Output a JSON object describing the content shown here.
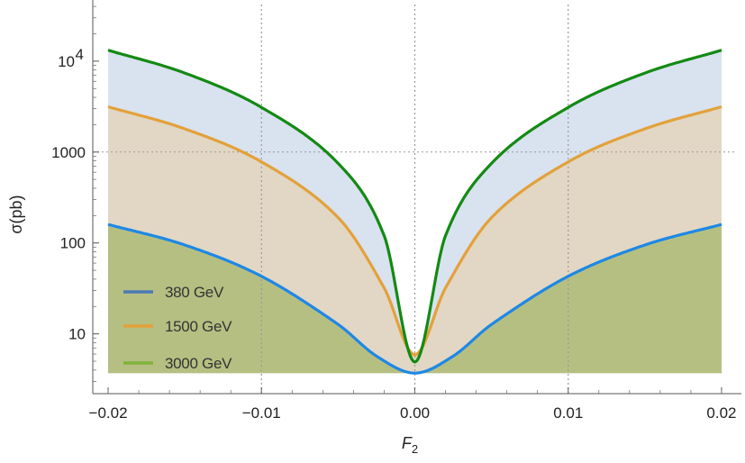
{
  "chart_data": {
    "type": "line",
    "xlabel": "F",
    "xlabel_sub": "2",
    "ylabel": "σ(pb)",
    "xlim": [
      -0.021,
      0.021
    ],
    "ylim": [
      2.2,
      42000
    ],
    "yscale": "log",
    "x_ticks": [
      -0.02,
      -0.01,
      0.0,
      0.01,
      0.02
    ],
    "x_tick_labels": [
      "−0.02",
      "−0.01",
      "0.00",
      "0.01",
      "0.02"
    ],
    "y_ticks": [
      {
        "value": 10,
        "label": "10"
      },
      {
        "value": 100,
        "label": "100"
      },
      {
        "value": 1000,
        "label": "1000"
      },
      {
        "value": 10000,
        "label": "10",
        "exponent": "4"
      }
    ],
    "grid_x": [
      -0.01,
      0.0,
      0.01
    ],
    "grid_y": [
      1000
    ],
    "fill_base": 3.7,
    "legend_position": "bottom-left",
    "series": [
      {
        "name": "380 GeV",
        "color": "#1e88e5",
        "legend_color": "#4a7ab5",
        "fill": "#b6bf82",
        "x": [
          -0.02,
          -0.015,
          -0.01,
          -0.005,
          -0.0025,
          0.0,
          0.0025,
          0.005,
          0.01,
          0.015,
          0.02
        ],
        "y": [
          160,
          95,
          43,
          12.7,
          5.7,
          3.7,
          5.7,
          12.7,
          43,
          95,
          160
        ]
      },
      {
        "name": "1500 GeV",
        "color": "#e3a13a",
        "legend_color": "#e3a13a",
        "fill": "#e2d7c4",
        "x": [
          -0.02,
          -0.015,
          -0.01,
          -0.005,
          -0.002,
          0.0,
          0.002,
          0.005,
          0.01,
          0.015,
          0.02
        ],
        "y": [
          3150,
          1800,
          780,
          190,
          32,
          5.9,
          32,
          190,
          780,
          1800,
          3150
        ]
      },
      {
        "name": "3000 GeV",
        "color": "#138a13",
        "legend_color": "#7fb43a",
        "fill": "#d9e2ef",
        "x": [
          -0.02,
          -0.015,
          -0.01,
          -0.005,
          -0.002,
          0.0,
          0.002,
          0.005,
          0.01,
          0.015,
          0.02
        ],
        "y": [
          13200,
          7400,
          3100,
          750,
          120,
          4.9,
          120,
          750,
          3100,
          7400,
          13200
        ]
      }
    ]
  }
}
